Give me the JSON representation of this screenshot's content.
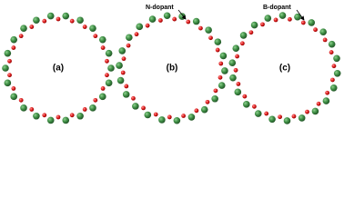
{
  "panels": [
    {
      "label": "(a)"
    },
    {
      "label": "(b)",
      "annotation": "N-dopant"
    },
    {
      "label": "(c)",
      "annotation": "B-dopant"
    }
  ]
}
